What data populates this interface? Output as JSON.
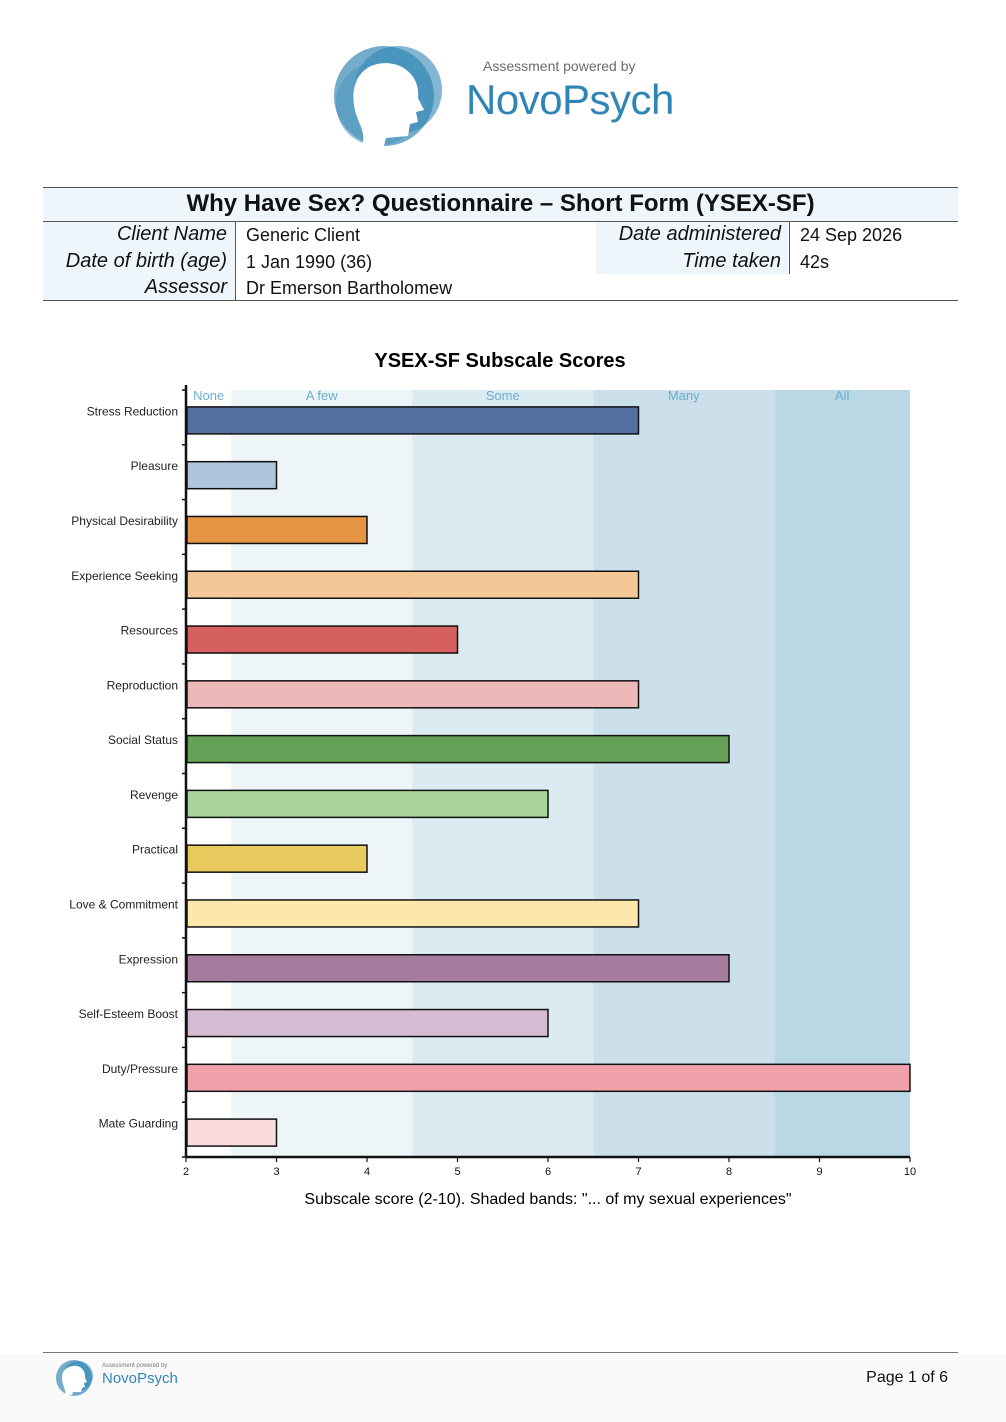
{
  "logo": {
    "powered_by": "Assessment powered by",
    "brand": "NovoPsych",
    "brand_color": "#2f86b4"
  },
  "report": {
    "title": "Why Have Sex? Questionnaire – Short Form (YSEX-SF)",
    "client_name_label": "Client Name",
    "client_name": "Generic Client",
    "dob_label": "Date of birth (age)",
    "dob": "1 Jan 1990 (36)",
    "assessor_label": "Assessor",
    "assessor": "Dr Emerson Bartholomew",
    "date_label": "Date administered",
    "date": "24 Sep 2026",
    "time_label": "Time taken",
    "time": "42s"
  },
  "chart_data": {
    "type": "bar",
    "orientation": "horizontal",
    "title": "YSEX-SF Subscale Scores",
    "xlabel": "Subscale score (2-10). Shaded bands: \"... of my sexual experiences\"",
    "xlim": [
      2,
      10
    ],
    "xticks": [
      2,
      3,
      4,
      5,
      6,
      7,
      8,
      9,
      10
    ],
    "bands": [
      {
        "label": "None",
        "from": 2,
        "to": 2.5,
        "color": "#ffffff"
      },
      {
        "label": "A few",
        "from": 2.5,
        "to": 4.5,
        "color": "#eef5f9"
      },
      {
        "label": "Some",
        "from": 4.5,
        "to": 6.5,
        "color": "#dceaf1"
      },
      {
        "label": "Many",
        "from": 6.5,
        "to": 8.5,
        "color": "#cbe0eb"
      },
      {
        "label": "All",
        "from": 8.5,
        "to": 10,
        "color": "#b9d8e3"
      }
    ],
    "band_label_color": "#6aaed0",
    "categories": [
      "Stress Reduction",
      "Pleasure",
      "Physical Desirability",
      "Experience Seeking",
      "Resources",
      "Reproduction",
      "Social Status",
      "Revenge",
      "Practical",
      "Love & Commitment",
      "Expression",
      "Self-Esteem Boost",
      "Duty/Pressure",
      "Mate Guarding"
    ],
    "values": [
      7,
      3,
      4,
      7,
      5,
      7,
      8,
      6,
      4,
      7,
      8,
      6,
      10,
      3
    ],
    "colors": [
      "#5470a0",
      "#b0c4de",
      "#e69545",
      "#f4c896",
      "#d65f5f",
      "#edb8b8",
      "#64a055",
      "#a8d49a",
      "#e8c95d",
      "#fbe8aa",
      "#a57c9e",
      "#d6bcd3",
      "#f0a0a8",
      "#fadadd"
    ]
  },
  "footer": {
    "powered_by": "Assessment powered by",
    "brand": "NovoPsych",
    "page": "Page 1 of 6"
  }
}
